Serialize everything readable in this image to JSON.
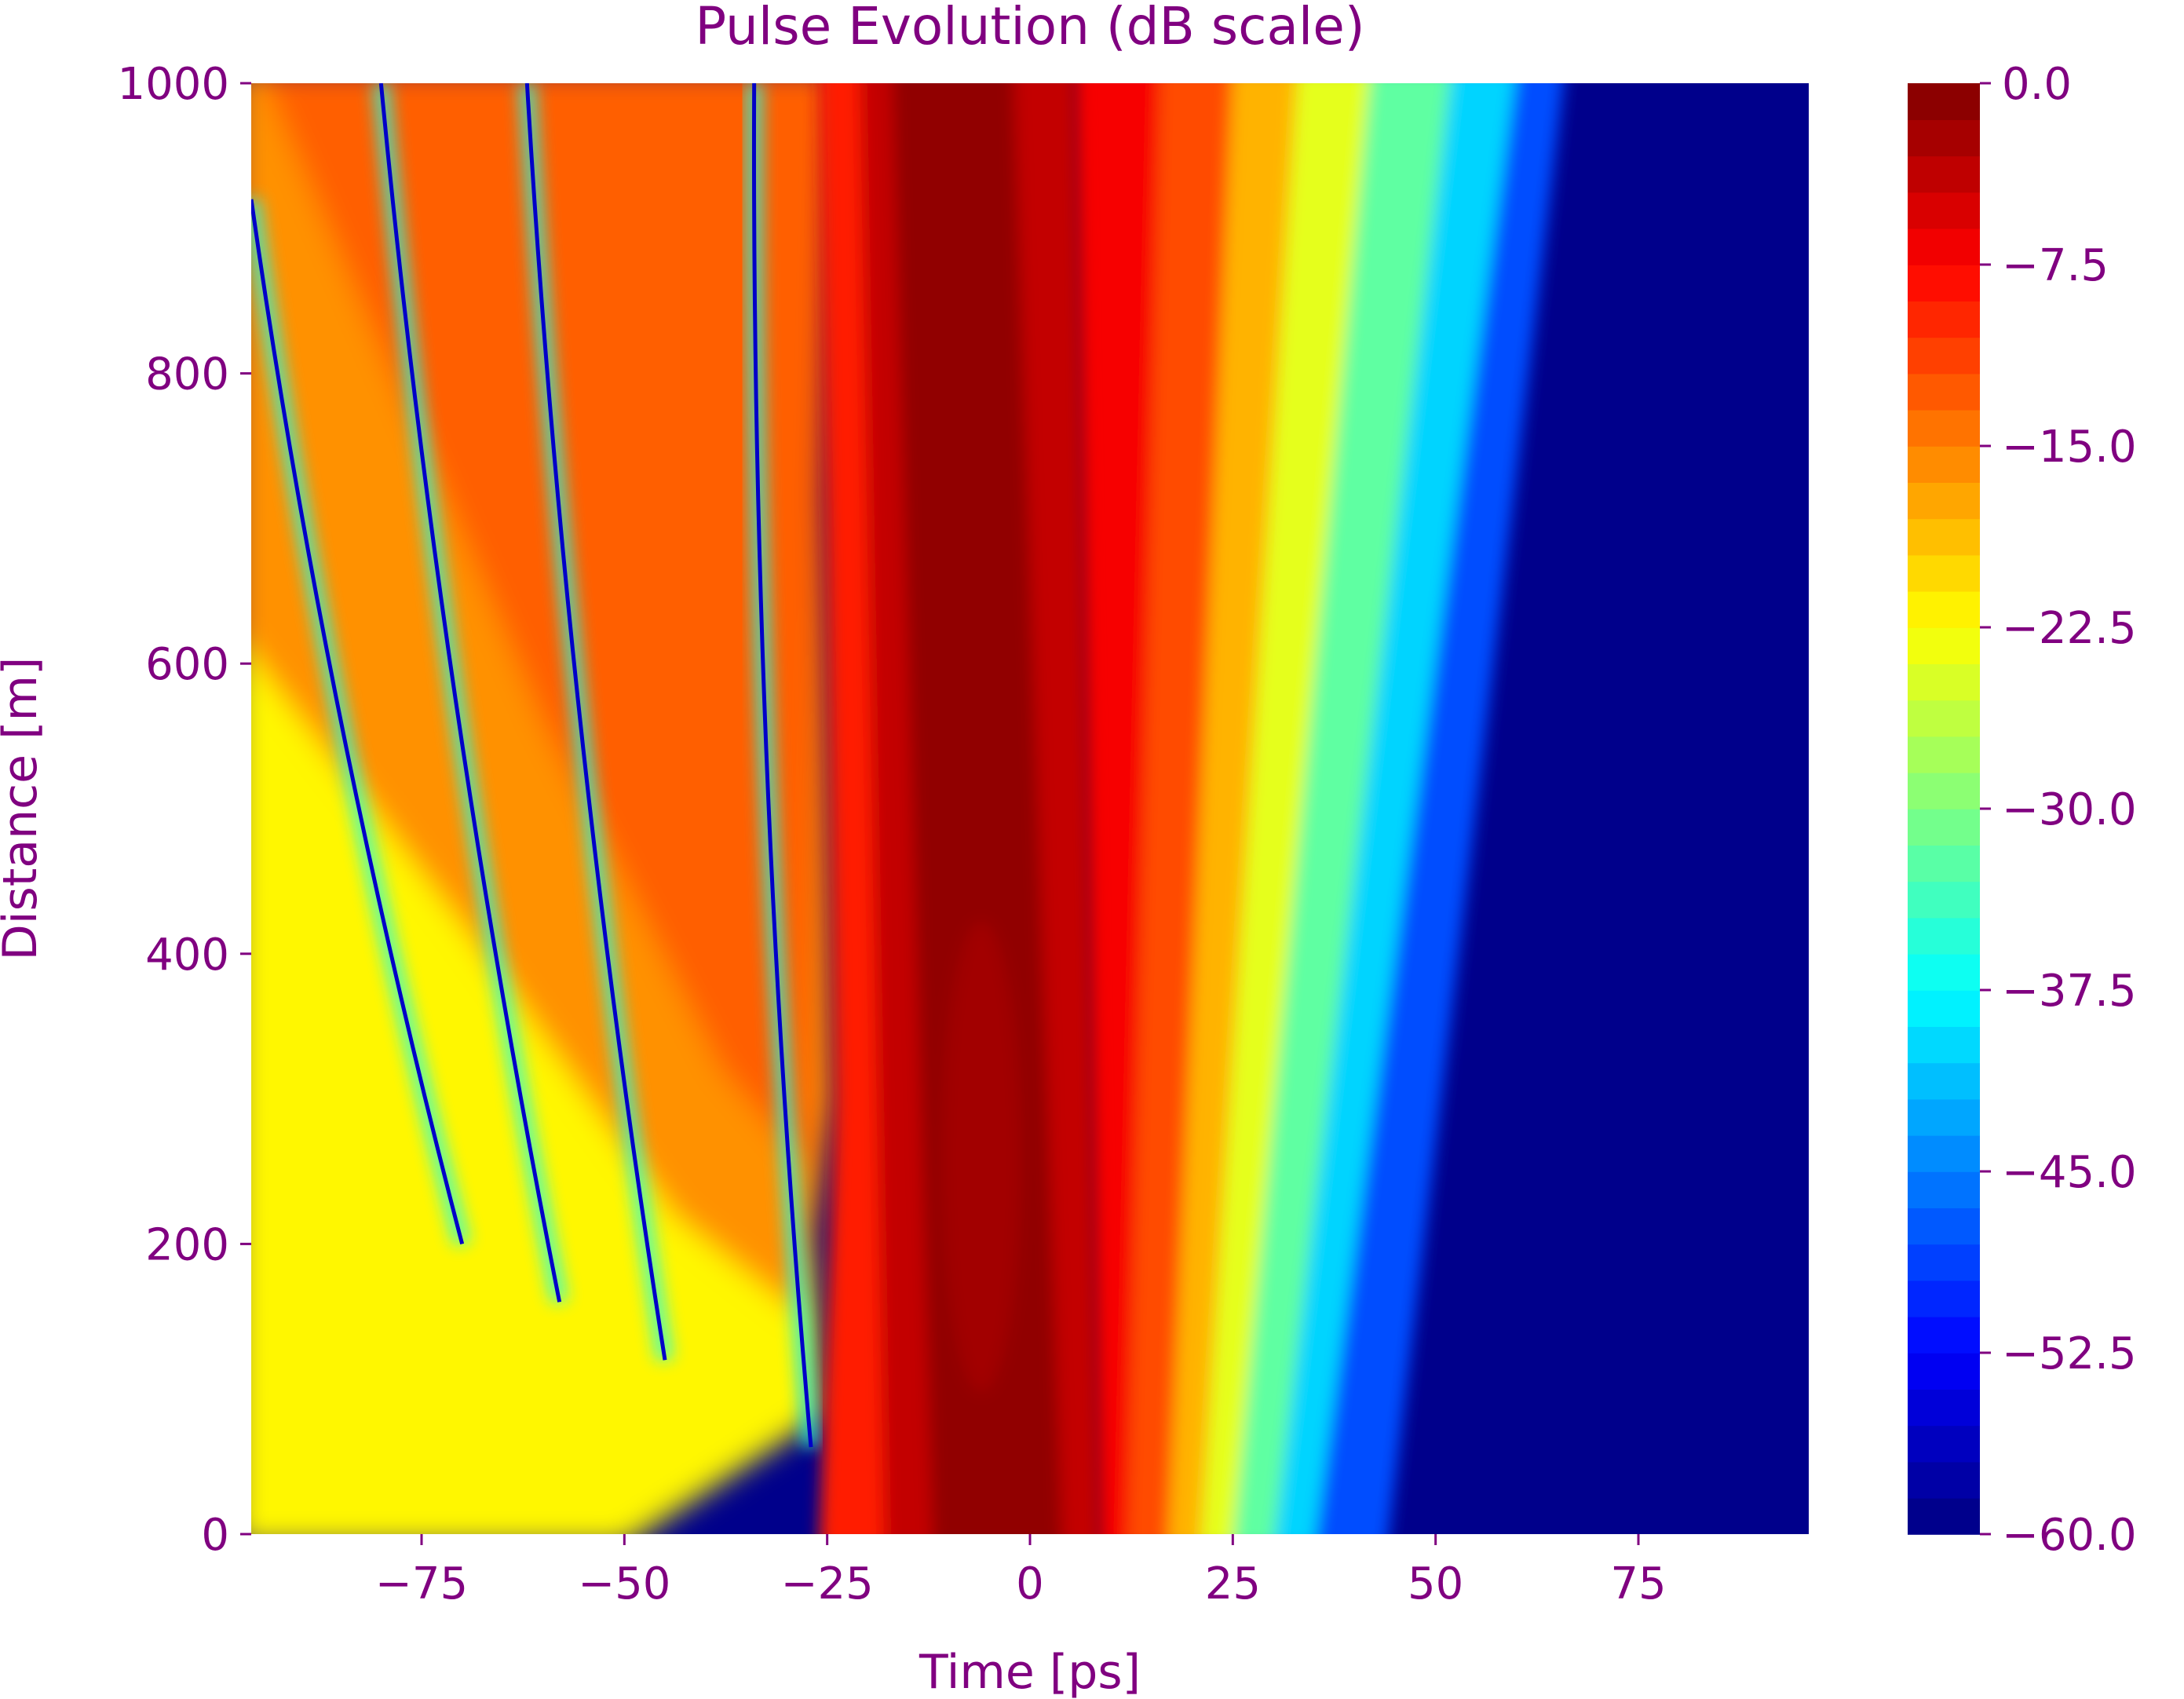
{
  "chart_data": {
    "type": "heatmap",
    "title": "Pulse Evolution (dB scale)",
    "xlabel": "Time [ps]",
    "ylabel": "Distance [m]",
    "xlim": [
      -96,
      96
    ],
    "ylim": [
      0,
      1000
    ],
    "x_ticks": [
      -75,
      -50,
      -25,
      0,
      25,
      50,
      75
    ],
    "x_tick_labels": [
      "−75",
      "−50",
      "−25",
      "0",
      "25",
      "50",
      "75"
    ],
    "y_ticks": [
      0,
      200,
      400,
      600,
      800,
      1000
    ],
    "y_tick_labels": [
      "0",
      "200",
      "400",
      "600",
      "800",
      "1000"
    ],
    "colorbar": {
      "colormap": "jet",
      "range": [
        -60,
        0
      ],
      "levels": 40,
      "ticks": [
        0.0,
        -7.5,
        -15.0,
        -22.5,
        -30.0,
        -37.5,
        -45.0,
        -52.5,
        -60.0
      ],
      "tick_labels": [
        "0.0",
        "−7.5",
        "−15.0",
        "−22.5",
        "−30.0",
        "−37.5",
        "−45.0",
        "−52.5",
        "−60.0"
      ]
    },
    "grid": false,
    "text_color": "#800080",
    "background_color": "#00008b"
  }
}
